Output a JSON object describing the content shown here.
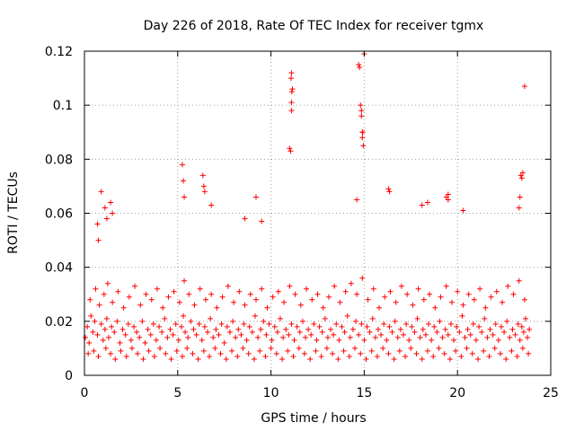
{
  "chart_data": {
    "type": "scatter",
    "title": "Day 226 of 2018, Rate Of TEC Index for receiver tgmx",
    "xlabel": "GPS time / hours",
    "ylabel": "ROTI / TECUs",
    "xlim": [
      0,
      25
    ],
    "ylim": [
      0,
      0.12
    ],
    "x_ticks": [
      0,
      5,
      10,
      15,
      20,
      25
    ],
    "y_ticks": [
      0,
      0.02,
      0.04,
      0.06,
      0.08,
      0.1,
      0.12
    ],
    "x_tick_labels": [
      "0",
      "5",
      "10",
      "15",
      "20",
      "25"
    ],
    "y_tick_labels": [
      "0",
      "0.02",
      "0.04",
      "0.06",
      "0.08",
      "0.1",
      "0.12"
    ],
    "grid": true,
    "marker": "+",
    "series": [
      {
        "name": "ROTI",
        "color": "#ff0000",
        "x": [
          0.05,
          0.15,
          0.25,
          0.35,
          0.45,
          0.55,
          0.7,
          0.9,
          1.0,
          1.1,
          1.2,
          1.3,
          1.45,
          1.6,
          1.75,
          1.9,
          2.05,
          2.2,
          2.35,
          2.5,
          2.65,
          2.8,
          2.95,
          3.1,
          3.25,
          3.4,
          3.55,
          3.7,
          3.85,
          4.0,
          4.15,
          4.3,
          4.45,
          4.6,
          4.75,
          4.9,
          5.05,
          5.2,
          5.3,
          5.4,
          5.55,
          5.7,
          5.85,
          6.0,
          6.15,
          6.3,
          6.45,
          6.6,
          6.75,
          6.9,
          7.05,
          7.2,
          7.35,
          7.5,
          7.65,
          7.8,
          7.95,
          8.1,
          8.25,
          8.4,
          8.55,
          8.7,
          8.85,
          9.0,
          9.15,
          9.3,
          9.45,
          9.6,
          9.75,
          9.9,
          10.05,
          10.2,
          10.35,
          10.5,
          10.65,
          10.8,
          10.95,
          11.1,
          11.25,
          11.4,
          11.55,
          11.7,
          11.85,
          12.0,
          12.15,
          12.3,
          12.45,
          12.6,
          12.75,
          12.9,
          13.05,
          13.2,
          13.35,
          13.5,
          13.65,
          13.8,
          13.95,
          14.1,
          14.25,
          14.4,
          14.55,
          14.7,
          14.85,
          15.0,
          15.15,
          15.3,
          15.45,
          15.6,
          15.75,
          15.9,
          16.05,
          16.2,
          16.35,
          16.5,
          16.65,
          16.8,
          16.95,
          17.1,
          17.25,
          17.4,
          17.55,
          17.7,
          17.85,
          18.0,
          18.15,
          18.3,
          18.45,
          18.6,
          18.75,
          18.9,
          19.05,
          19.2,
          19.35,
          19.5,
          19.65,
          19.8,
          19.95,
          20.1,
          20.25,
          20.4,
          20.55,
          20.7,
          20.85,
          21.0,
          21.15,
          21.3,
          21.45,
          21.6,
          21.75,
          21.9,
          22.05,
          22.2,
          22.35,
          22.5,
          22.65,
          22.8,
          22.95,
          23.1,
          23.25,
          23.35,
          23.45,
          23.55,
          23.65,
          23.75,
          23.85,
          0.3,
          0.6,
          0.8,
          1.05,
          1.25,
          1.5,
          1.8,
          2.1,
          2.4,
          2.7,
          3.0,
          3.3,
          3.6,
          3.9,
          4.2,
          4.5,
          4.8,
          5.1,
          5.35,
          5.6,
          5.9,
          6.2,
          6.5,
          6.8,
          7.1,
          7.4,
          7.7,
          8.0,
          8.3,
          8.6,
          8.9,
          9.2,
          9.5,
          9.8,
          10.1,
          10.4,
          10.7,
          11.0,
          11.3,
          11.6,
          11.9,
          12.2,
          12.5,
          12.8,
          13.1,
          13.4,
          13.7,
          14.0,
          14.3,
          14.6,
          14.9,
          15.2,
          15.5,
          15.8,
          16.1,
          16.4,
          16.7,
          17.0,
          17.3,
          17.6,
          17.9,
          18.2,
          18.5,
          18.8,
          19.1,
          19.4,
          19.7,
          20.0,
          20.3,
          20.6,
          20.9,
          21.2,
          21.5,
          21.8,
          22.1,
          22.4,
          22.7,
          23.0,
          23.3,
          23.6,
          0.2,
          0.5,
          0.75,
          1.15,
          1.4,
          1.65,
          1.95,
          2.25,
          2.55,
          2.85,
          3.15,
          3.45,
          3.75,
          4.05,
          4.35,
          4.65,
          4.95,
          5.25,
          5.5,
          5.8,
          6.1,
          6.4,
          6.7,
          7.0,
          7.3,
          7.6,
          7.9,
          8.2,
          8.5,
          8.8,
          9.1,
          9.4,
          9.7,
          10.0,
          10.3,
          10.6,
          10.9,
          11.2,
          11.5,
          11.8,
          12.1,
          12.4,
          12.7,
          13.0,
          13.3,
          13.6,
          13.9,
          14.2,
          14.5,
          14.8,
          15.1,
          15.4,
          15.7,
          16.0,
          16.3,
          16.6,
          16.9,
          17.2,
          17.5,
          17.8,
          18.1,
          18.4,
          18.7,
          19.0,
          19.3,
          19.6,
          19.9,
          20.2,
          20.5,
          20.8,
          21.1,
          21.4,
          21.7,
          22.0,
          22.3,
          22.6,
          22.9,
          23.2,
          23.5,
          23.8,
          0.7,
          0.75,
          0.9,
          1.1,
          1.2,
          1.4,
          1.5,
          5.25,
          5.3,
          5.35,
          6.35,
          6.4,
          6.45,
          6.8,
          8.6,
          9.2,
          9.5,
          11.0,
          11.05,
          11.1,
          11.1,
          11.12,
          11.15,
          11.08,
          11.1,
          14.6,
          14.7,
          14.75,
          14.8,
          14.85,
          14.85,
          14.9,
          14.9,
          14.95,
          14.92,
          15.0,
          16.3,
          16.35,
          18.1,
          18.4,
          19.4,
          19.5,
          19.5,
          20.3,
          23.3,
          23.35,
          23.4,
          23.45,
          23.5,
          23.6
        ],
        "y": [
          0.014,
          0.018,
          0.012,
          0.022,
          0.016,
          0.02,
          0.015,
          0.019,
          0.013,
          0.017,
          0.021,
          0.014,
          0.018,
          0.016,
          0.02,
          0.012,
          0.017,
          0.015,
          0.019,
          0.013,
          0.018,
          0.016,
          0.014,
          0.02,
          0.012,
          0.017,
          0.015,
          0.019,
          0.013,
          0.018,
          0.016,
          0.021,
          0.014,
          0.017,
          0.015,
          0.019,
          0.013,
          0.018,
          0.022,
          0.016,
          0.014,
          0.02,
          0.017,
          0.015,
          0.019,
          0.013,
          0.018,
          0.016,
          0.021,
          0.014,
          0.017,
          0.015,
          0.019,
          0.012,
          0.018,
          0.016,
          0.02,
          0.014,
          0.017,
          0.015,
          0.019,
          0.013,
          0.018,
          0.016,
          0.022,
          0.014,
          0.017,
          0.02,
          0.015,
          0.019,
          0.013,
          0.018,
          0.016,
          0.021,
          0.014,
          0.017,
          0.015,
          0.019,
          0.013,
          0.018,
          0.016,
          0.02,
          0.014,
          0.017,
          0.015,
          0.019,
          0.013,
          0.018,
          0.016,
          0.021,
          0.014,
          0.017,
          0.015,
          0.019,
          0.013,
          0.018,
          0.016,
          0.022,
          0.014,
          0.017,
          0.02,
          0.015,
          0.019,
          0.013,
          0.018,
          0.016,
          0.021,
          0.014,
          0.017,
          0.015,
          0.019,
          0.013,
          0.018,
          0.016,
          0.02,
          0.014,
          0.017,
          0.015,
          0.019,
          0.013,
          0.018,
          0.016,
          0.021,
          0.014,
          0.017,
          0.015,
          0.019,
          0.013,
          0.018,
          0.016,
          0.02,
          0.014,
          0.017,
          0.015,
          0.019,
          0.013,
          0.018,
          0.016,
          0.022,
          0.014,
          0.017,
          0.015,
          0.019,
          0.013,
          0.018,
          0.016,
          0.021,
          0.014,
          0.017,
          0.015,
          0.019,
          0.013,
          0.018,
          0.016,
          0.02,
          0.014,
          0.017,
          0.015,
          0.019,
          0.013,
          0.018,
          0.016,
          0.021,
          0.014,
          0.017,
          0.028,
          0.032,
          0.026,
          0.03,
          0.034,
          0.027,
          0.031,
          0.025,
          0.029,
          0.033,
          0.026,
          0.03,
          0.028,
          0.032,
          0.025,
          0.029,
          0.031,
          0.027,
          0.035,
          0.03,
          0.026,
          0.032,
          0.028,
          0.03,
          0.025,
          0.029,
          0.033,
          0.027,
          0.031,
          0.026,
          0.03,
          0.028,
          0.032,
          0.025,
          0.029,
          0.031,
          0.027,
          0.033,
          0.03,
          0.026,
          0.032,
          0.028,
          0.03,
          0.025,
          0.029,
          0.033,
          0.027,
          0.031,
          0.034,
          0.03,
          0.036,
          0.028,
          0.032,
          0.025,
          0.029,
          0.031,
          0.027,
          0.033,
          0.03,
          0.026,
          0.032,
          0.028,
          0.03,
          0.025,
          0.029,
          0.033,
          0.027,
          0.031,
          0.026,
          0.03,
          0.028,
          0.032,
          0.025,
          0.029,
          0.031,
          0.027,
          0.033,
          0.03,
          0.035,
          0.028,
          0.008,
          0.009,
          0.007,
          0.01,
          0.008,
          0.006,
          0.009,
          0.007,
          0.01,
          0.008,
          0.006,
          0.009,
          0.007,
          0.01,
          0.008,
          0.006,
          0.009,
          0.007,
          0.01,
          0.008,
          0.006,
          0.009,
          0.007,
          0.01,
          0.008,
          0.006,
          0.009,
          0.007,
          0.01,
          0.008,
          0.006,
          0.009,
          0.007,
          0.01,
          0.008,
          0.006,
          0.009,
          0.007,
          0.01,
          0.008,
          0.006,
          0.009,
          0.007,
          0.01,
          0.008,
          0.006,
          0.009,
          0.007,
          0.01,
          0.008,
          0.006,
          0.009,
          0.007,
          0.01,
          0.008,
          0.006,
          0.009,
          0.007,
          0.01,
          0.008,
          0.006,
          0.009,
          0.007,
          0.01,
          0.008,
          0.006,
          0.009,
          0.007,
          0.01,
          0.008,
          0.006,
          0.009,
          0.007,
          0.01,
          0.008,
          0.006,
          0.009,
          0.007,
          0.01,
          0.008,
          0.056,
          0.05,
          0.068,
          0.062,
          0.058,
          0.064,
          0.06,
          0.078,
          0.072,
          0.066,
          0.074,
          0.07,
          0.068,
          0.063,
          0.058,
          0.066,
          0.057,
          0.084,
          0.083,
          0.098,
          0.101,
          0.105,
          0.106,
          0.11,
          0.112,
          0.065,
          0.115,
          0.114,
          0.1,
          0.098,
          0.096,
          0.09,
          0.088,
          0.085,
          0.09,
          0.119,
          0.069,
          0.068,
          0.063,
          0.064,
          0.066,
          0.067,
          0.065,
          0.061,
          0.062,
          0.066,
          0.074,
          0.073,
          0.075,
          0.107
        ]
      }
    ]
  }
}
